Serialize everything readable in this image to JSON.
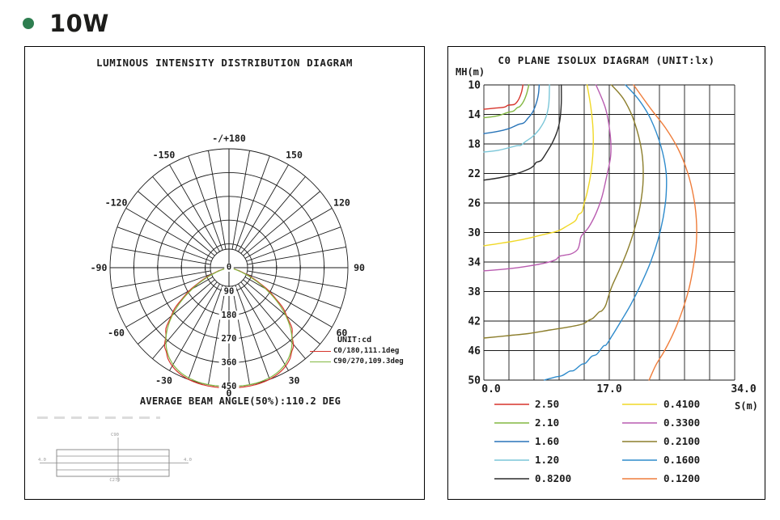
{
  "page": {
    "title": "10W",
    "bullet_color": "#2e7e50"
  },
  "chart_data": [
    {
      "type": "polar-line",
      "title": "LUMINOUS INTENSITY DISTRIBUTION DIAGRAM",
      "caption": "AVERAGE BEAM ANGLE(50%):110.2 DEG",
      "unit": "cd",
      "unit_label": "UNIT:cd",
      "radial_ticks": [
        90,
        180,
        270,
        360,
        450
      ],
      "radial_max": 450,
      "center_label": "0",
      "bottom_angle_label": "0",
      "top_angle_label": "-/+180",
      "angle_labels": [
        [
          30,
          "30"
        ],
        [
          60,
          "60"
        ],
        [
          90,
          "90"
        ],
        [
          120,
          "120"
        ],
        [
          150,
          "150"
        ],
        [
          -30,
          "-30"
        ],
        [
          -60,
          "-60"
        ],
        [
          -90,
          "-90"
        ],
        [
          -120,
          "-120"
        ],
        [
          -150,
          "-150"
        ]
      ],
      "angle_grid_step_deg": 10,
      "series": [
        {
          "name": "C0/180,111.1deg",
          "color": "#d7342c",
          "beam_angle_deg": 111.1,
          "peak_cd": 455,
          "ripple": 0.024
        },
        {
          "name": "C90/270,109.3deg",
          "color": "#82b741",
          "beam_angle_deg": 109.3,
          "peak_cd": 450,
          "ripple": 0
        }
      ],
      "fixture": {
        "top": "C90",
        "bottom": "C270",
        "left": "4.0",
        "right": "4.0"
      }
    },
    {
      "type": "contour",
      "title": "C0 PLANE ISOLUX DIAGRAM (UNIT:lx)",
      "xlabel": "S(m)",
      "ylabel": "MH(m)",
      "xlim": [
        0,
        34
      ],
      "ylim": [
        10,
        50
      ],
      "x_tick_labels": [
        "0.0",
        "17.0",
        "34.0"
      ],
      "y_tick_labels": [
        "10",
        "14",
        "18",
        "22",
        "26",
        "30",
        "34",
        "38",
        "42",
        "46",
        "50"
      ],
      "grid_cols": 10,
      "grid_rows": 10,
      "legend_columns": 2,
      "contours": [
        {
          "level": "2.50",
          "color": "#d7342c",
          "points": [
            [
              0,
              13.3
            ],
            [
              1.5,
              13.15
            ],
            [
              2.8,
              13.0
            ],
            [
              3.3,
              12.75
            ],
            [
              4.1,
              12.65
            ],
            [
              4.5,
              12.3
            ],
            [
              4.8,
              11.8
            ],
            [
              5.1,
              11.0
            ],
            [
              5.3,
              10
            ]
          ]
        },
        {
          "level": "2.10",
          "color": "#82b741",
          "points": [
            [
              0,
              14.45
            ],
            [
              1.8,
              14.2
            ],
            [
              3.2,
              13.75
            ],
            [
              4.0,
              13.55
            ],
            [
              4.5,
              13.1
            ],
            [
              4.9,
              12.9
            ],
            [
              5.4,
              12.2
            ],
            [
              5.8,
              11.2
            ],
            [
              6.1,
              10
            ]
          ]
        },
        {
          "level": "1.60",
          "color": "#2874b8",
          "points": [
            [
              0,
              16.6
            ],
            [
              1.6,
              16.35
            ],
            [
              3.3,
              15.95
            ],
            [
              4.7,
              15.35
            ],
            [
              5.4,
              15.15
            ],
            [
              5.9,
              14.6
            ],
            [
              6.6,
              13.7
            ],
            [
              7.1,
              12.5
            ],
            [
              7.4,
              11.2
            ],
            [
              7.5,
              10
            ]
          ]
        },
        {
          "level": "1.20",
          "color": "#7ac6d8",
          "points": [
            [
              0,
              19.1
            ],
            [
              2.0,
              18.85
            ],
            [
              4.4,
              18.25
            ],
            [
              5.0,
              18.2
            ],
            [
              5.6,
              17.7
            ],
            [
              6.6,
              17.0
            ],
            [
              7.6,
              15.9
            ],
            [
              8.4,
              14.4
            ],
            [
              8.8,
              12.6
            ],
            [
              8.9,
              10
            ]
          ]
        },
        {
          "level": "0.8200",
          "color": "#2b2b2b",
          "points": [
            [
              0,
              22.9
            ],
            [
              2.0,
              22.6
            ],
            [
              4.2,
              22.1
            ],
            [
              6.1,
              21.4
            ],
            [
              6.8,
              20.9
            ],
            [
              7.1,
              20.5
            ],
            [
              7.8,
              20.2
            ],
            [
              8.6,
              19.0
            ],
            [
              9.3,
              17.8
            ],
            [
              9.9,
              16.4
            ],
            [
              10.3,
              14.8
            ],
            [
              10.5,
              12.5
            ],
            [
              10.5,
              10
            ]
          ]
        },
        {
          "level": "0.4100",
          "color": "#f0d827",
          "points": [
            [
              0,
              31.8
            ],
            [
              2,
              31.5
            ],
            [
              5,
              31.0
            ],
            [
              8,
              30.3
            ],
            [
              10,
              29.8
            ],
            [
              11.3,
              29.1
            ],
            [
              12.4,
              28.4
            ],
            [
              12.8,
              27.6
            ],
            [
              13.3,
              27.2
            ],
            [
              13.6,
              26.0
            ],
            [
              14.0,
              24.6
            ],
            [
              14.5,
              22.0
            ],
            [
              14.8,
              19.0
            ],
            [
              14.8,
              16.0
            ],
            [
              14.5,
              13.0
            ],
            [
              14.0,
              10
            ]
          ]
        },
        {
          "level": "0.3300",
          "color": "#b95cb0",
          "points": [
            [
              0,
              35.2
            ],
            [
              2.5,
              35.0
            ],
            [
              5,
              34.7
            ],
            [
              8,
              34.2
            ],
            [
              9.7,
              33.7
            ],
            [
              10.3,
              33.2
            ],
            [
              11.8,
              32.9
            ],
            [
              12.7,
              32.3
            ],
            [
              13.0,
              31.4
            ],
            [
              13.2,
              30.5
            ],
            [
              14.2,
              29.3
            ],
            [
              15.2,
              27.4
            ],
            [
              16.0,
              25.2
            ],
            [
              16.6,
              22.6
            ],
            [
              17.2,
              19.5
            ],
            [
              17.1,
              16.5
            ],
            [
              16.5,
              13.2
            ],
            [
              15.2,
              10
            ]
          ]
        },
        {
          "level": "0.2100",
          "color": "#8c7e2c",
          "points": [
            [
              0,
              44.3
            ],
            [
              3,
              44.0
            ],
            [
              6,
              43.7
            ],
            [
              9,
              43.2
            ],
            [
              11.5,
              42.8
            ],
            [
              13.4,
              42.4
            ],
            [
              14.2,
              41.9
            ],
            [
              14.8,
              41.6
            ],
            [
              15.6,
              40.8
            ],
            [
              16.0,
              40.6
            ],
            [
              16.5,
              39.9
            ],
            [
              16.9,
              38.6
            ],
            [
              17.4,
              37.2
            ],
            [
              18.3,
              35.2
            ],
            [
              19.4,
              32.6
            ],
            [
              20.4,
              29.6
            ],
            [
              21.2,
              26.3
            ],
            [
              21.6,
              22.8
            ],
            [
              21.4,
              19.0
            ],
            [
              20.4,
              15.0
            ],
            [
              19.0,
              12.0
            ],
            [
              17.3,
              10
            ]
          ]
        },
        {
          "level": "0.1600",
          "color": "#2e8bcc",
          "points": [
            [
              8.2,
              50
            ],
            [
              9.6,
              49.6
            ],
            [
              10.6,
              49.4
            ],
            [
              11.6,
              48.8
            ],
            [
              12.2,
              48.7
            ],
            [
              13.2,
              47.9
            ],
            [
              13.8,
              47.7
            ],
            [
              14.6,
              46.8
            ],
            [
              15.3,
              46.5
            ],
            [
              16.2,
              45.4
            ],
            [
              16.6,
              45.2
            ],
            [
              17.5,
              43.8
            ],
            [
              18.6,
              42.0
            ],
            [
              19.9,
              39.8
            ],
            [
              21.3,
              37.0
            ],
            [
              22.6,
              34.0
            ],
            [
              23.6,
              31.0
            ],
            [
              24.3,
              28.0
            ],
            [
              24.7,
              25.0
            ],
            [
              24.7,
              21.8
            ],
            [
              24.0,
              18.3
            ],
            [
              22.6,
              14.6
            ],
            [
              21.0,
              12.0
            ],
            [
              19.2,
              10
            ]
          ]
        },
        {
          "level": "0.1200",
          "color": "#ef7d3b",
          "points": [
            [
              22.4,
              50
            ],
            [
              23.3,
              48.0
            ],
            [
              24.5,
              46.0
            ],
            [
              25.8,
              43.4
            ],
            [
              26.9,
              40.6
            ],
            [
              27.8,
              37.6
            ],
            [
              28.4,
              34.6
            ],
            [
              28.8,
              31.4
            ],
            [
              28.8,
              28.2
            ],
            [
              28.4,
              25.0
            ],
            [
              27.6,
              21.8
            ],
            [
              26.3,
              18.6
            ],
            [
              24.6,
              15.8
            ],
            [
              22.6,
              13.2
            ],
            [
              20.3,
              10
            ]
          ]
        }
      ]
    }
  ]
}
